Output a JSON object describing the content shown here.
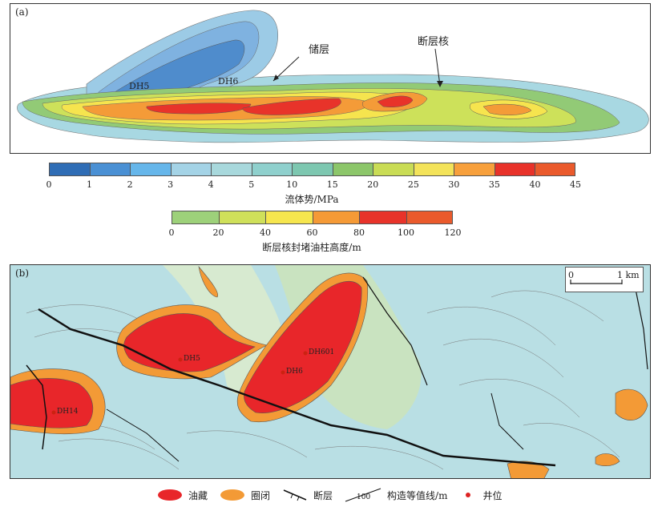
{
  "panel_a": {
    "label": "(a)",
    "annotations": {
      "reservoir": "储层",
      "fault_core": "断层核",
      "well_dh5": "DH5",
      "well_dh6": "DH6"
    }
  },
  "colorbar_potential": {
    "ticks": [
      "0",
      "1",
      "2",
      "3",
      "4",
      "5",
      "10",
      "15",
      "20",
      "25",
      "30",
      "35",
      "40",
      "45"
    ],
    "colors": [
      "#2f6db5",
      "#4a90d4",
      "#66b6ea",
      "#a4d3e6",
      "#a8d8dc",
      "#8fd0cd",
      "#7dc7b0",
      "#8cc66a",
      "#c9dc55",
      "#f3e35a",
      "#f7a03c",
      "#e8322a",
      "#ea5a2c"
    ],
    "title": "流体势/MPa"
  },
  "colorbar_column": {
    "ticks": [
      "0",
      "20",
      "40",
      "60",
      "80",
      "100",
      "120"
    ],
    "colors": [
      "#9dd17a",
      "#cfe05a",
      "#f6e64e",
      "#f59a36",
      "#e8332a",
      "#ea5a2c"
    ],
    "title": "断层核封堵油柱高度/m"
  },
  "panel_b": {
    "label": "(b)",
    "wells": [
      "DH5",
      "DH6",
      "DH601",
      "DH14"
    ],
    "scalebar": {
      "start": "0",
      "end": "1 km"
    }
  },
  "legend": {
    "items": [
      {
        "label": "油藏",
        "color": "#e8262a"
      },
      {
        "label": "圈闭",
        "color": "#f39a36"
      },
      {
        "label": "断层"
      },
      {
        "label": "构造等值线/m",
        "sample": "100"
      },
      {
        "label": "井位",
        "color": "#d22"
      }
    ]
  }
}
